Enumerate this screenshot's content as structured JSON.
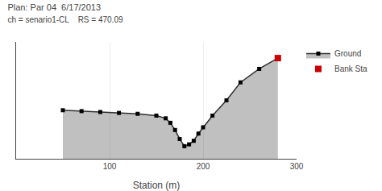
{
  "chart_data": {
    "type": "line",
    "title": "Plan: Par 04  6/17/2013",
    "subtitle": "ch = senario1-CL    RS = 470.09",
    "xlabel": "Station (m)",
    "series": [
      {
        "name": "Ground",
        "type": "area",
        "color": "#303030",
        "marker": "square",
        "line_style": "solid",
        "x": [
          50,
          70,
          90,
          110,
          130,
          150,
          160,
          165,
          170,
          175,
          180,
          185,
          190,
          195,
          200,
          210,
          225,
          240,
          260,
          280
        ],
        "values": [
          22.4,
          22.3,
          22.2,
          22.1,
          22.0,
          21.8,
          21.5,
          21.0,
          20.2,
          19.2,
          18.4,
          18.6,
          19.0,
          19.8,
          20.5,
          21.8,
          23.5,
          25.5,
          27.0,
          28.2
        ]
      },
      {
        "name": "Bank Sta",
        "type": "scatter",
        "color": "#cc0000",
        "marker": "square",
        "x": [
          280
        ],
        "values": [
          28.2
        ]
      }
    ],
    "xlim": [
      0,
      300
    ],
    "ylim": [
      17.0,
      30.0
    ],
    "xticks": [
      100,
      200,
      300
    ],
    "grid": true,
    "legend": "right",
    "tick_labels": "x"
  }
}
